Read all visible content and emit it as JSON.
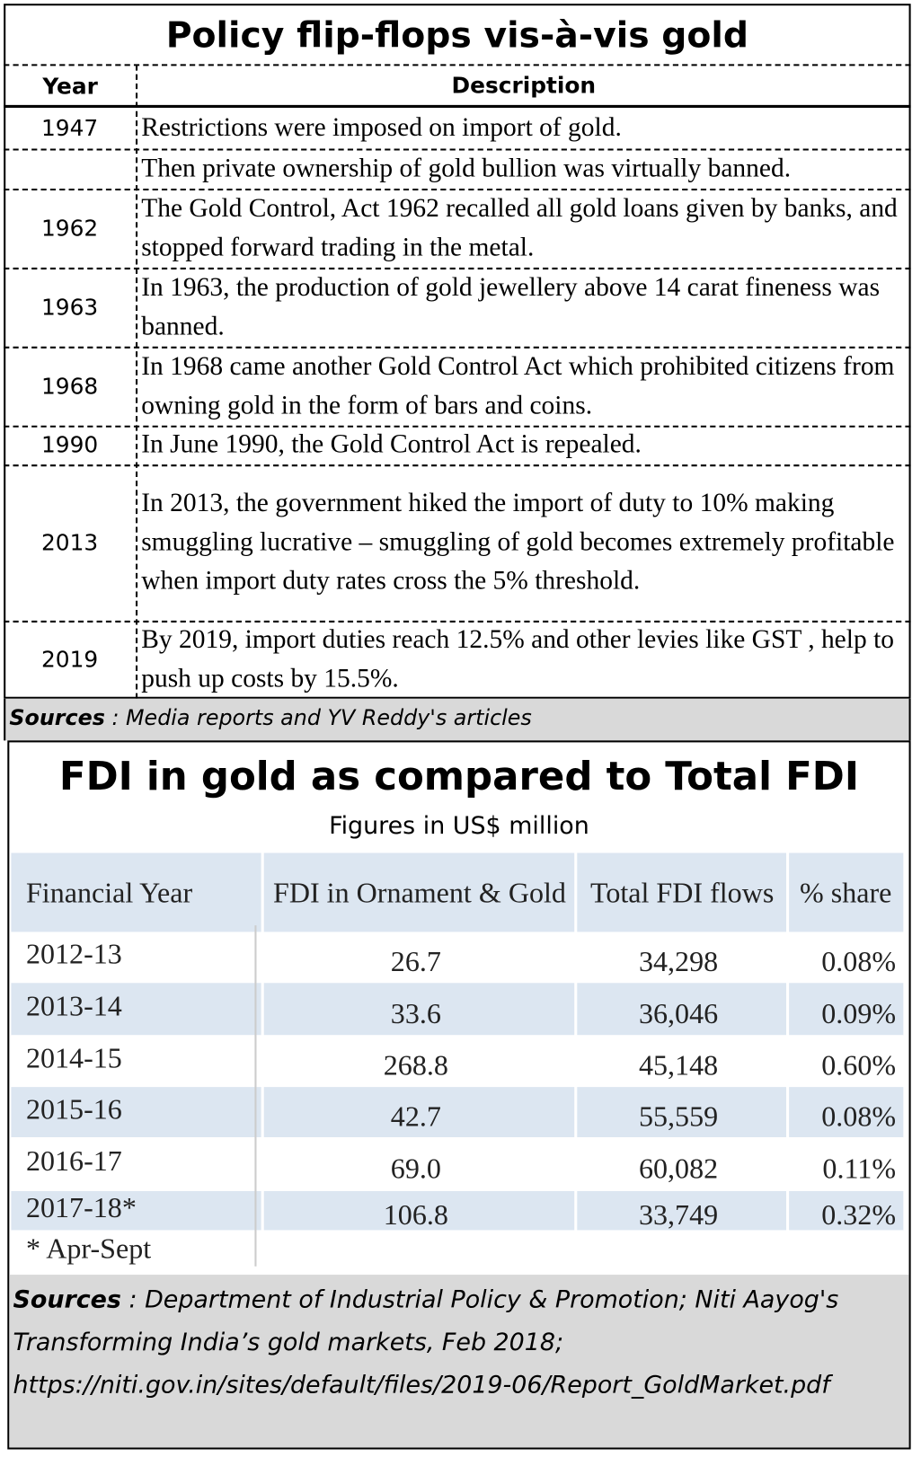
{
  "policy_table": {
    "title": "Policy flip-flops vis-à-vis gold",
    "headers": [
      "Year",
      "Description"
    ],
    "rows": [
      [
        "1947",
        "Restrictions were imposed on import of gold."
      ],
      [
        null,
        "Then private ownership of gold bullion was virtually banned."
      ],
      [
        "1962",
        "The Gold Control, Act 1962 recalled all gold loans given by banks, and stopped forward trading in the metal."
      ],
      [
        "1963",
        "In 1963, the production of gold jewellery above 14 carat fineness was banned."
      ],
      [
        "1968",
        "In 1968 came another Gold Control Act which prohibited citizens from owning gold in the form of bars and coins."
      ],
      [
        "1990",
        "In June 1990, the Gold Control Act is repealed."
      ],
      [
        "2013",
        "In 2013, the government hiked the import of duty to 10% making smuggling lucrative – smuggling of gold becomes extremely profitable when import duty rates cross the 5% threshold."
      ],
      [
        "2019",
        "By 2019, import duties reach 12.5% and other levies like GST , help to push up costs by 15.5%."
      ]
    ],
    "sources_label": "Sources",
    "sources_text": ": Media reports and YV Reddy's articles"
  },
  "fdi_table": {
    "title": "FDI in gold as compared to Total FDI",
    "subtitle": "Figures in US$ million",
    "headers": [
      "Financial Year",
      "FDI in Ornament & Gold",
      "Total FDI flows",
      "% share"
    ],
    "rows": [
      [
        "2012-13",
        "26.7",
        "34,298",
        "0.08%"
      ],
      [
        "2013-14",
        "33.6",
        "36,046",
        "0.09%"
      ],
      [
        "2014-15",
        "268.8",
        "45,148",
        "0.60%"
      ],
      [
        "2015-16",
        "42.7",
        "55,559",
        "0.08%"
      ],
      [
        "2016-17",
        "69.0",
        "60,082",
        "0.11%"
      ],
      [
        "2017-18*",
        "106.8",
        "33,749",
        "0.32%"
      ]
    ],
    "footnote": "* Apr-Sept",
    "sources_label": "Sources",
    "sources_text": ": Department of Industrial Policy & Promotion; Niti Aayog's Transforming India’s gold markets, Feb 2018; https://niti.gov.in/sites/default/files/2019-06/Report_GoldMarket.pdf"
  }
}
